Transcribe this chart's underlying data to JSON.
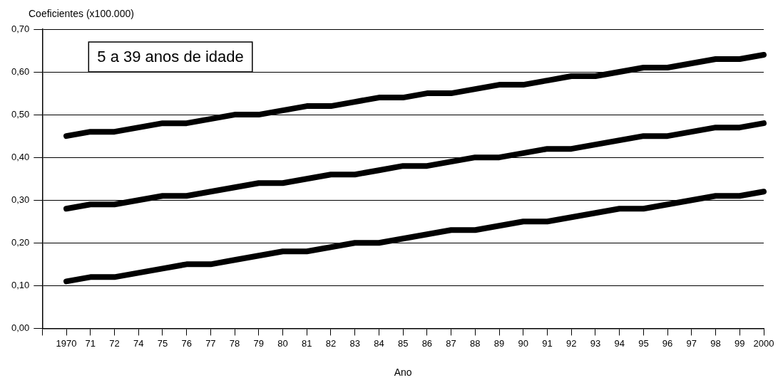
{
  "chart_data": {
    "type": "line",
    "ylabel": "Coeficientes (x100.000)",
    "xlabel": "Ano",
    "annotations": [
      "5 a 39 anos de idade"
    ],
    "categories": [
      null,
      "1970",
      "71",
      "72",
      "74",
      "75",
      "76",
      "77",
      "78",
      "79",
      "80",
      "81",
      "82",
      "83",
      "84",
      "85",
      "86",
      "87",
      "88",
      "89",
      "90",
      "91",
      "92",
      "93",
      "94",
      "95",
      "96",
      "97",
      "98",
      "99",
      "2000"
    ],
    "series": [
      {
        "color": "#000000",
        "values": [
          null,
          0.45,
          0.46,
          0.46,
          0.47,
          0.48,
          0.48,
          0.49,
          0.5,
          0.5,
          0.51,
          0.52,
          0.52,
          0.53,
          0.54,
          0.54,
          0.55,
          0.55,
          0.56,
          0.57,
          0.57,
          0.58,
          0.59,
          0.59,
          0.6,
          0.61,
          0.61,
          0.62,
          0.63,
          0.63,
          0.64
        ]
      },
      {
        "color": "#000000",
        "values": [
          null,
          0.28,
          0.29,
          0.29,
          0.3,
          0.31,
          0.31,
          0.32,
          0.33,
          0.34,
          0.34,
          0.35,
          0.36,
          0.36,
          0.37,
          0.38,
          0.38,
          0.39,
          0.4,
          0.4,
          0.41,
          0.42,
          0.42,
          0.43,
          0.44,
          0.45,
          0.45,
          0.46,
          0.47,
          0.47,
          0.48
        ]
      },
      {
        "color": "#000000",
        "values": [
          null,
          0.11,
          0.12,
          0.12,
          0.13,
          0.14,
          0.15,
          0.15,
          0.16,
          0.17,
          0.18,
          0.18,
          0.19,
          0.2,
          0.2,
          0.21,
          0.22,
          0.23,
          0.23,
          0.24,
          0.25,
          0.25,
          0.26,
          0.27,
          0.28,
          0.28,
          0.29,
          0.3,
          0.31,
          0.31,
          0.32
        ]
      }
    ],
    "ylim": [
      0,
      0.7
    ],
    "yticks": [
      {
        "value": 0,
        "label": "0,00"
      },
      {
        "value": 0.1,
        "label": "0,10"
      },
      {
        "value": 0.2,
        "label": "0,20"
      },
      {
        "value": 0.3,
        "label": "0,30"
      },
      {
        "value": 0.4,
        "label": "0,40"
      },
      {
        "value": 0.5,
        "label": "0,50"
      },
      {
        "value": 0.6,
        "label": "0,60"
      },
      {
        "value": 0.7,
        "label": "0,70"
      }
    ],
    "grid": "y",
    "legend": false,
    "marker": "none",
    "line_style": "solid"
  }
}
